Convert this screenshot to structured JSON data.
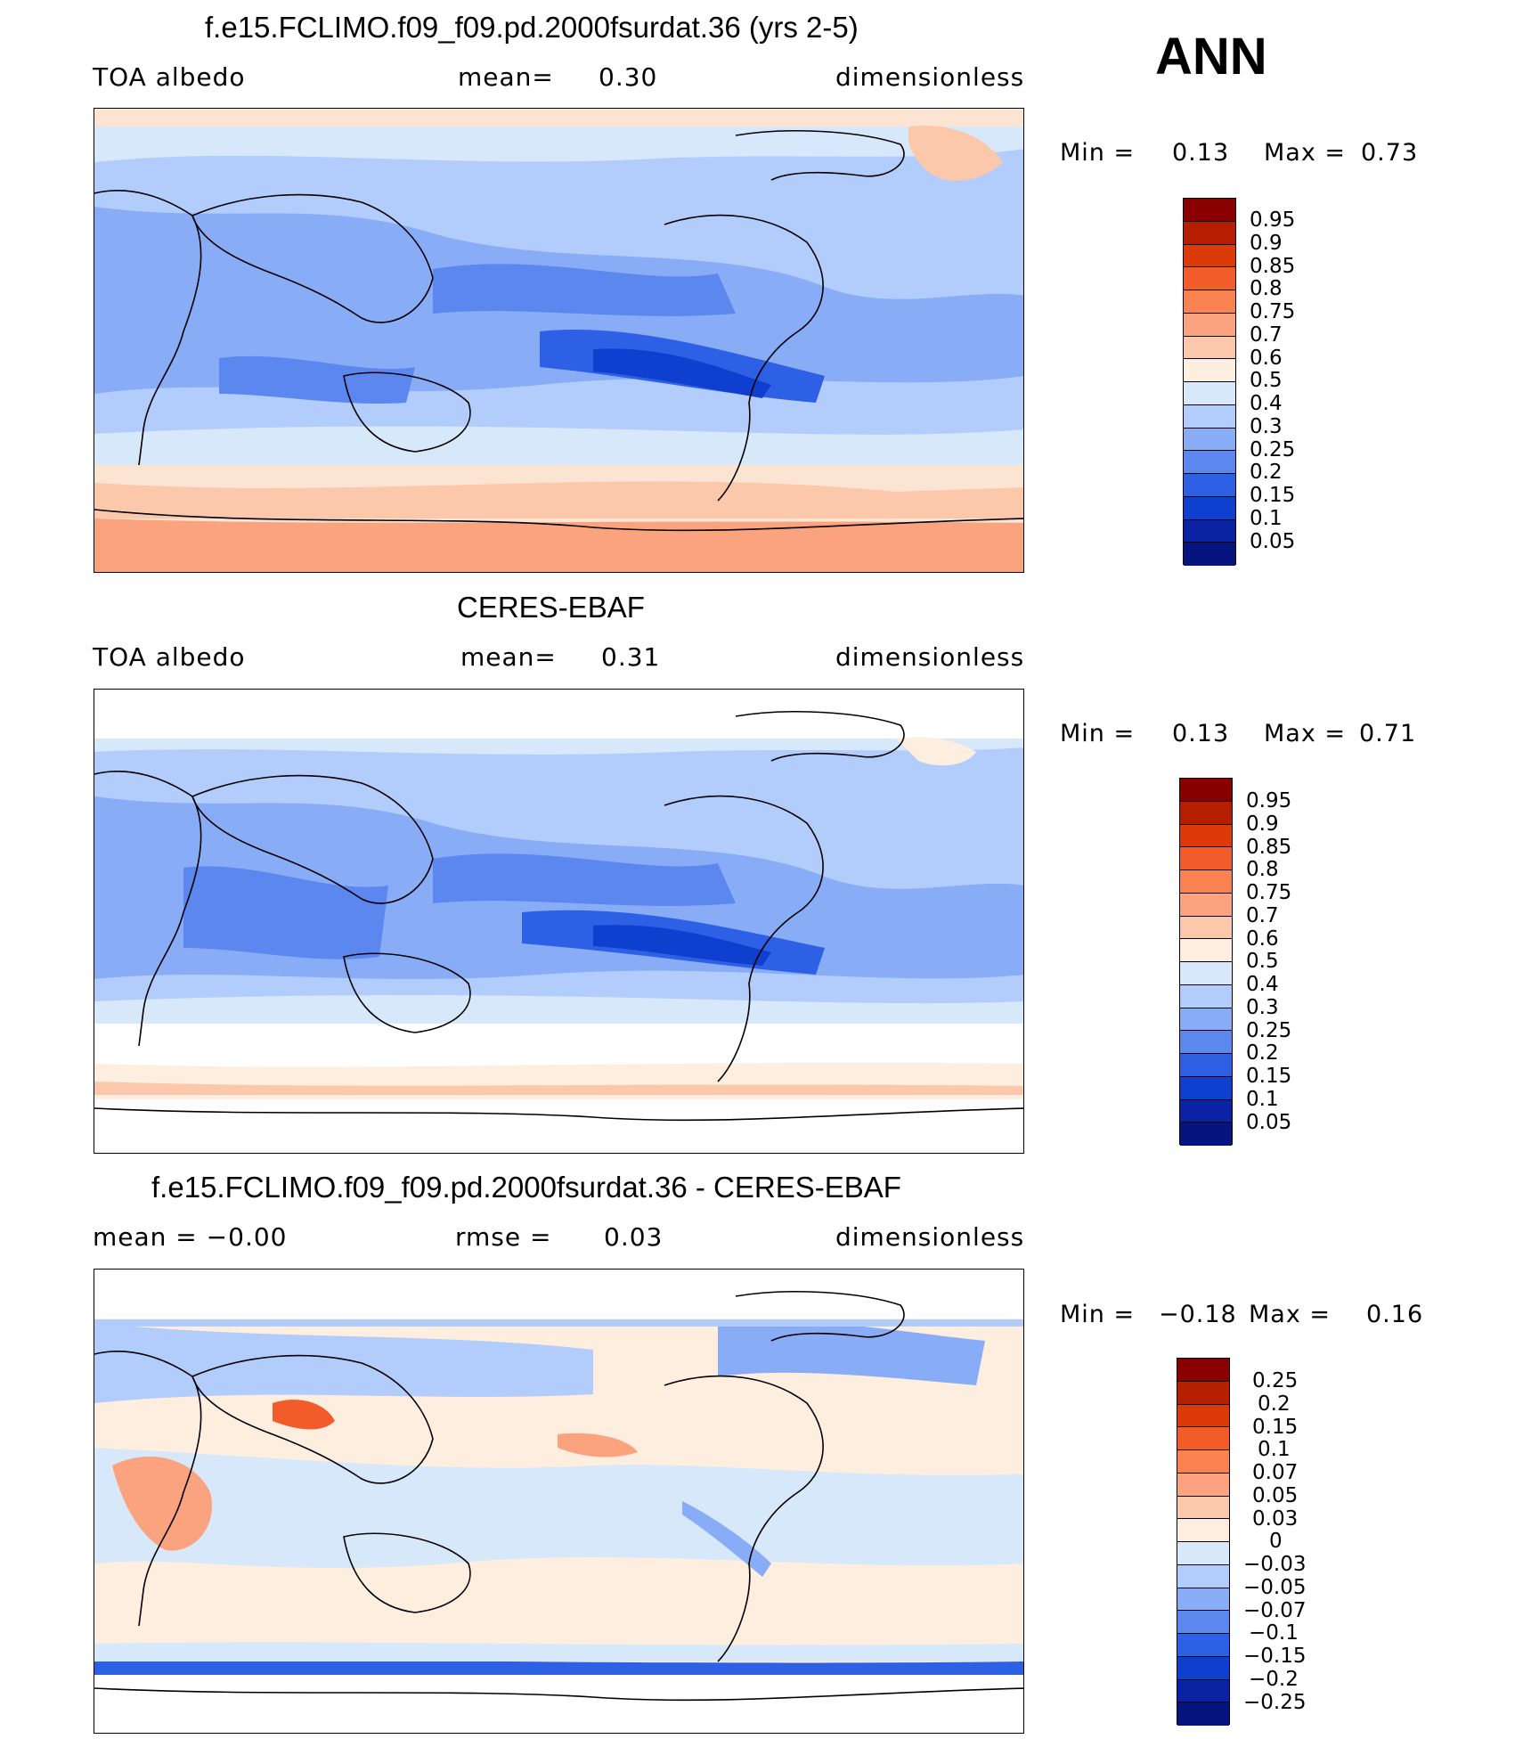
{
  "season": "ANN",
  "panels": [
    {
      "title": "f.e15.FCLIMO.f09_f09.pd.2000fsurdat.36 (yrs 2-5)",
      "left": "TOA  albedo",
      "mean_label": "mean=",
      "mean_value": "0.30",
      "units": "dimensionless",
      "min_label": "Min  =",
      "min_value": "0.13",
      "max_label": "Max  =",
      "max_value": "0.73",
      "levels": [
        "0.95",
        "0.9",
        "0.85",
        "0.8",
        "0.75",
        "0.7",
        "0.6",
        "0.5",
        "0.4",
        "0.3",
        "0.25",
        "0.2",
        "0.15",
        "0.1",
        "0.05"
      ],
      "colors": [
        "#8a0000",
        "#b51f00",
        "#dc3a06",
        "#f25c2a",
        "#fa8150",
        "#fba37e",
        "#fcc8ac",
        "#fdeee0",
        "#d7e8fb",
        "#b2cdfb",
        "#89acf7",
        "#5b87ef",
        "#2e60e6",
        "#0f3fcf",
        "#0a22a4",
        "#061480"
      ]
    },
    {
      "title": "CERES-EBAF",
      "left": "TOA  albedo",
      "mean_label": "mean=",
      "mean_value": "0.31",
      "units": "dimensionless",
      "min_label": "Min  =",
      "min_value": "0.13",
      "max_label": "Max  =",
      "max_value": "0.71",
      "levels": [
        "0.95",
        "0.9",
        "0.85",
        "0.8",
        "0.75",
        "0.7",
        "0.6",
        "0.5",
        "0.4",
        "0.3",
        "0.25",
        "0.2",
        "0.15",
        "0.1",
        "0.05"
      ],
      "colors": [
        "#8a0000",
        "#b51f00",
        "#dc3a06",
        "#f25c2a",
        "#fa8150",
        "#fba37e",
        "#fcc8ac",
        "#fdeee0",
        "#d7e8fb",
        "#b2cdfb",
        "#89acf7",
        "#5b87ef",
        "#2e60e6",
        "#0f3fcf",
        "#0a22a4",
        "#061480"
      ]
    },
    {
      "title": "f.e15.FCLIMO.f09_f09.pd.2000fsurdat.36 - CERES-EBAF",
      "left": "mean  =   −0.00",
      "mean_label": "rmse  =",
      "mean_value": "0.03",
      "units": "dimensionless",
      "min_label": "Min  =",
      "min_value": "−0.18",
      "max_label": "Max  =",
      "max_value": "0.16",
      "levels": [
        "0.25",
        "0.2",
        "0.15",
        "0.1",
        "0.07",
        "0.05",
        "0.03",
        "0",
        "−0.03",
        "−0.05",
        "−0.07",
        "−0.1",
        "−0.15",
        "−0.2",
        "−0.25"
      ],
      "colors": [
        "#8a0000",
        "#b51f00",
        "#dc3a06",
        "#f25c2a",
        "#fa8150",
        "#fba37e",
        "#fcc8ac",
        "#fdeee0",
        "#d7e8fb",
        "#b2cdfb",
        "#89acf7",
        "#5b87ef",
        "#2e60e6",
        "#0f3fcf",
        "#0a22a4",
        "#061480"
      ]
    }
  ]
}
